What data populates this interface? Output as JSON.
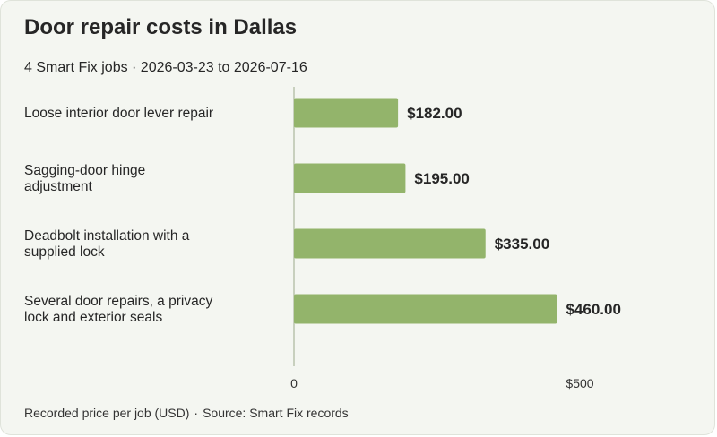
{
  "title": "Door repair costs in Dallas",
  "subtitle": "4 Smart Fix jobs · 2026-03-23 to 2026-07-16",
  "footer": {
    "measure": "Recorded price per job (USD)",
    "separator": "·",
    "source": "Source: Smart Fix records"
  },
  "colors": {
    "background": "#f4f6f1",
    "bar": "#93b46b",
    "axis": "#b9c4ae",
    "text": "#262626"
  },
  "chart_data": {
    "type": "bar",
    "orientation": "horizontal",
    "categories": [
      "Loose interior door lever repair",
      "Sagging-door hinge adjustment",
      "Deadbolt installation with a supplied lock",
      "Several door repairs, a privacy lock and exterior seals"
    ],
    "values": [
      182.0,
      195.0,
      335.0,
      460.0
    ],
    "value_labels": [
      "$182.00",
      "$195.00",
      "$335.00",
      "$460.00"
    ],
    "xlim": [
      0,
      500
    ],
    "xticks": [
      0,
      500
    ],
    "xtick_labels": [
      "0",
      "$500"
    ],
    "grid": false,
    "legend": "none"
  }
}
